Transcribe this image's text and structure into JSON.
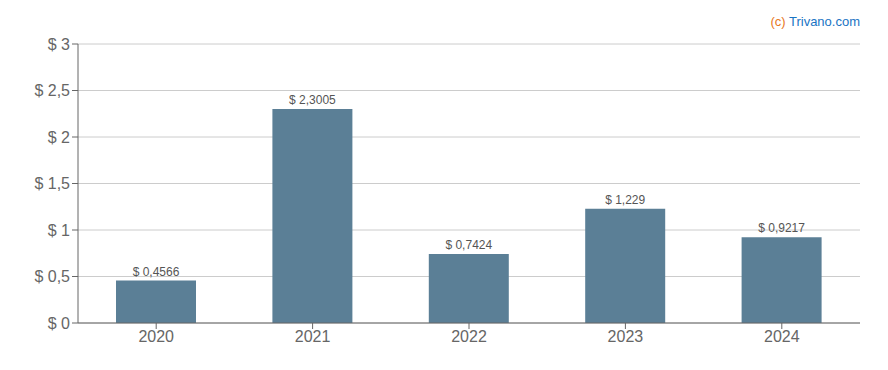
{
  "chart_data": {
    "type": "bar",
    "categories": [
      "2020",
      "2021",
      "2022",
      "2023",
      "2024"
    ],
    "values": [
      0.4566,
      2.3005,
      0.7424,
      1.229,
      0.9217
    ],
    "value_labels": [
      "$ 0,4566",
      "$ 2,3005",
      "$ 0,7424",
      "$ 1,229",
      "$ 0,9217"
    ],
    "color": "#5b7f96",
    "ylim": [
      0,
      3.0
    ],
    "yticks": [
      {
        "value": 0,
        "label": "$ 0"
      },
      {
        "value": 0.5,
        "label": "$ 0,5"
      },
      {
        "value": 1.0,
        "label": "$ 1"
      },
      {
        "value": 1.5,
        "label": "$ 1,5"
      },
      {
        "value": 2.0,
        "label": "$ 2"
      },
      {
        "value": 2.5,
        "label": "$ 2,5"
      },
      {
        "value": 3.0,
        "label": "$ 3"
      }
    ],
    "grid": true,
    "data_labels": true,
    "annotations": [
      {
        "text": "(c)",
        "color": "#e87722"
      },
      {
        "text": " Trivano.com",
        "color": "#1a74c4"
      }
    ]
  }
}
